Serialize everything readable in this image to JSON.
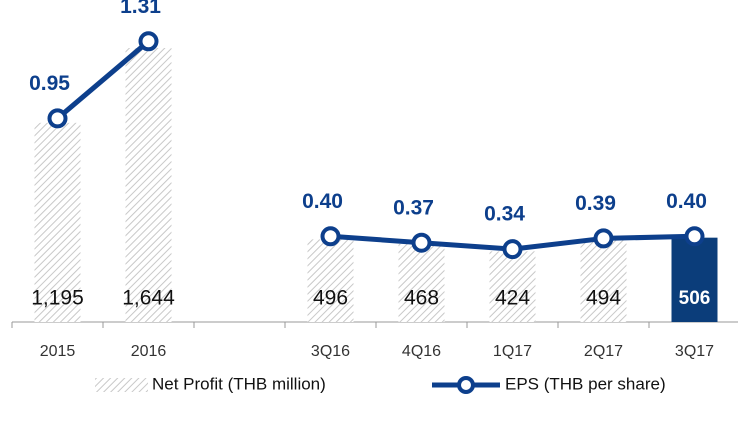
{
  "chart_data": {
    "type": "bar_line",
    "categories": [
      "2015",
      "2016",
      null,
      "3Q16",
      "4Q16",
      "1Q17",
      "2Q17",
      "3Q17"
    ],
    "series": [
      {
        "name": "Net Profit (THB million)",
        "type": "bar",
        "color": "#c8c8c8",
        "colors": [
          "#c8c8c8",
          "#c8c8c8",
          null,
          "#c8c8c8",
          "#c8c8c8",
          "#c8c8c8",
          "#c8c8c8",
          "#0b3d7a"
        ],
        "values": [
          1195,
          1644,
          null,
          496,
          468,
          424,
          494,
          506
        ],
        "value_labels": [
          "1,195",
          "1,644",
          null,
          "496",
          "468",
          "424",
          "494",
          "506"
        ]
      },
      {
        "name": "EPS (THB per share)",
        "type": "line",
        "axis": "y2",
        "color": "#0d3f8c",
        "values": [
          0.95,
          1.31,
          null,
          0.4,
          0.37,
          0.34,
          0.39,
          0.4
        ],
        "value_labels": [
          "0.95",
          "1.31",
          null,
          "0.40",
          "0.37",
          "0.34",
          "0.39",
          "0.40"
        ]
      }
    ],
    "ylim": [
      0,
      1800
    ],
    "y2lim": [
      0,
      1.4
    ],
    "legend": "bottom"
  }
}
